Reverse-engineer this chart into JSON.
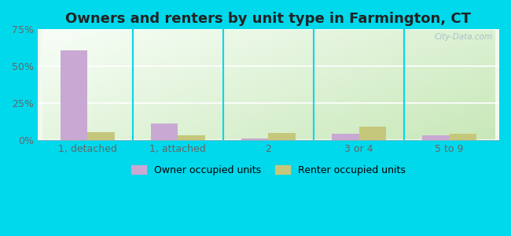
{
  "title": "Owners and renters by unit type in Farmington, CT",
  "categories": [
    "1, detached",
    "1, attached",
    "2",
    "3 or 4",
    "5 to 9"
  ],
  "owner_values": [
    60.5,
    11.0,
    1.0,
    4.0,
    3.0
  ],
  "renter_values": [
    5.0,
    3.0,
    4.5,
    9.0,
    4.0
  ],
  "owner_color": "#c9a8d4",
  "renter_color": "#c5c87a",
  "ylim": [
    0,
    75
  ],
  "yticks": [
    0,
    25,
    50,
    75
  ],
  "ytick_labels": [
    "0%",
    "25%",
    "50%",
    "75%"
  ],
  "background_outer": "#00d8ec",
  "background_plot_top_left": "#f0faf0",
  "background_plot_bottom_right": "#d8eecc",
  "legend_owner": "Owner occupied units",
  "legend_renter": "Renter occupied units",
  "bar_width": 0.3,
  "title_fontsize": 13,
  "watermark": "City-Data.com",
  "divider_color": "#00d8ec",
  "grid_color": "#d0e8d0"
}
